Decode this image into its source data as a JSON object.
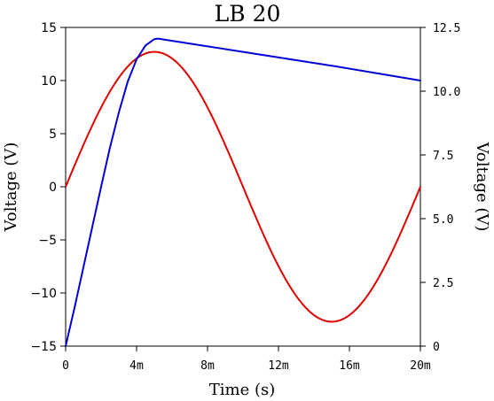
{
  "chart_data": {
    "type": "line",
    "title": "LB 20",
    "xlabel": "Time (s)",
    "ylabel_left": "Voltage (V)",
    "ylabel_right": "Voltage (V)",
    "x_ticks": [
      "0",
      "4m",
      "8m",
      "12m",
      "16m",
      "20m"
    ],
    "x_tick_values": [
      0,
      0.004,
      0.008,
      0.012,
      0.016,
      0.02
    ],
    "y_left_ticks": [
      "15",
      "10",
      "5",
      "0",
      "−5",
      "−10",
      "−15"
    ],
    "y_left_tick_values": [
      15,
      10,
      5,
      0,
      -5,
      -10,
      -15
    ],
    "y_right_ticks": [
      "12.5",
      "10.0",
      "7.5",
      "5.0",
      "2.5",
      "0"
    ],
    "y_right_tick_values": [
      12.5,
      10,
      7.5,
      5,
      2.5,
      0
    ],
    "xlim": [
      0,
      0.02
    ],
    "ylim_left": [
      -15,
      15
    ],
    "ylim_right": [
      0,
      12.5
    ],
    "grid": false,
    "colors": {
      "sine": "#e00000",
      "envelope": "#0000d8",
      "axes": "#000000"
    },
    "series": [
      {
        "axis": "left",
        "color": "#e00000",
        "function": "sine",
        "amplitude": 12.7,
        "frequency_hz": 50,
        "x_range": [
          0,
          0.02
        ]
      },
      {
        "axis": "left",
        "color": "#0000d8",
        "x": [
          0,
          0.0005,
          0.001,
          0.0015,
          0.002,
          0.0025,
          0.003,
          0.0035,
          0.004,
          0.0045,
          0.005,
          0.0052,
          0.01,
          0.015,
          0.02
        ],
        "y": [
          -15,
          -11.4,
          -7.6,
          -3.8,
          0,
          3.7,
          7.0,
          9.9,
          12.0,
          13.3,
          13.9,
          13.95,
          12.7,
          11.4,
          10.0
        ]
      }
    ]
  }
}
